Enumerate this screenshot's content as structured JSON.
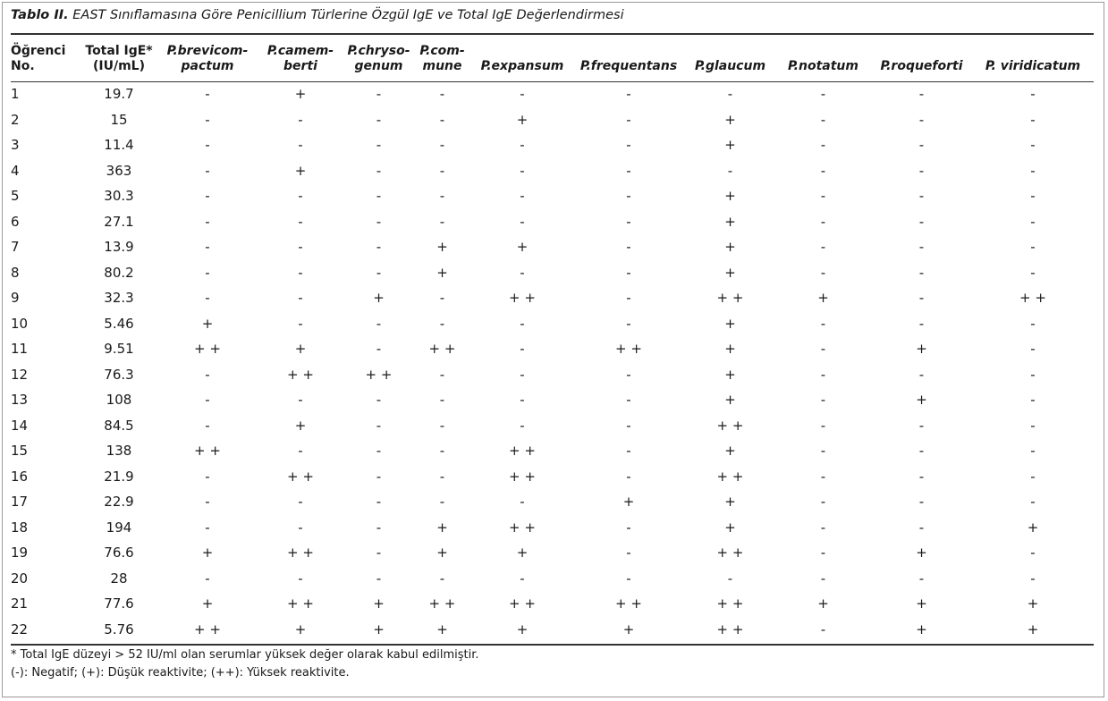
{
  "caption": {
    "label": "Tablo II.",
    "text": "EAST Sınıflamasına Göre Penicillium Türlerine Özgül IgE ve Total IgE Değerlendirmesi"
  },
  "headers": [
    {
      "l1": "Öğrenci",
      "l2": "No."
    },
    {
      "l1": "Total IgE*",
      "l2": "(IU/mL)"
    },
    {
      "l1": "P.brevicom-",
      "l2": "pactum"
    },
    {
      "l1": "P.camem-",
      "l2": "berti"
    },
    {
      "l1": "P.chryso-",
      "l2": "genum"
    },
    {
      "l1": "P.com-",
      "l2": "mune"
    },
    {
      "l1": "",
      "l2": "P.expansum"
    },
    {
      "l1": "",
      "l2": "P.frequentans"
    },
    {
      "l1": "",
      "l2": "P.glaucum"
    },
    {
      "l1": "",
      "l2": "P.notatum"
    },
    {
      "l1": "",
      "l2": "P.roqueforti"
    },
    {
      "l1": "",
      "l2": "P. viridicatum"
    }
  ],
  "rows": [
    [
      "1",
      "19.7",
      "-",
      "+",
      "-",
      "-",
      "-",
      "-",
      "-",
      "-",
      "-",
      "-"
    ],
    [
      "2",
      "15",
      "-",
      "-",
      "-",
      "-",
      "+",
      "-",
      "+",
      "-",
      "-",
      "-"
    ],
    [
      "3",
      "11.4",
      "-",
      "-",
      "-",
      "-",
      "-",
      "-",
      "+",
      "-",
      "-",
      "-"
    ],
    [
      "4",
      "363",
      "-",
      "+",
      "-",
      "-",
      "-",
      "-",
      "-",
      "-",
      "-",
      "-"
    ],
    [
      "5",
      "30.3",
      "-",
      "-",
      "-",
      "-",
      "-",
      "-",
      "+",
      "-",
      "-",
      "-"
    ],
    [
      "6",
      "27.1",
      "-",
      "-",
      "-",
      "-",
      "-",
      "-",
      "+",
      "-",
      "-",
      "-"
    ],
    [
      "7",
      "13.9",
      "-",
      "-",
      "-",
      "+",
      "+",
      "-",
      "+",
      "-",
      "-",
      "-"
    ],
    [
      "8",
      "80.2",
      "-",
      "-",
      "-",
      "+",
      "-",
      "-",
      "+",
      "-",
      "-",
      "-"
    ],
    [
      "9",
      "32.3",
      "-",
      "-",
      "+",
      "-",
      "+ +",
      "-",
      "+ +",
      "+",
      "-",
      "+ +"
    ],
    [
      "10",
      "5.46",
      "+",
      "-",
      "-",
      "-",
      "-",
      "-",
      "+",
      "-",
      "-",
      "-"
    ],
    [
      "11",
      "9.51",
      "+ +",
      "+",
      "-",
      "+ +",
      "-",
      "+ +",
      "+",
      "-",
      "+",
      "-"
    ],
    [
      "12",
      "76.3",
      "-",
      "+ +",
      "+ +",
      "-",
      "-",
      "-",
      "+",
      "-",
      "-",
      "-"
    ],
    [
      "13",
      "108",
      "-",
      "-",
      "-",
      "-",
      "-",
      "-",
      "+",
      "-",
      "+",
      "-"
    ],
    [
      "14",
      "84.5",
      "-",
      "+",
      "-",
      "-",
      "-",
      "-",
      "+ +",
      "-",
      "-",
      "-"
    ],
    [
      "15",
      "138",
      "+ +",
      "-",
      "-",
      "-",
      "+ +",
      "-",
      "+",
      "-",
      "-",
      "-"
    ],
    [
      "16",
      "21.9",
      "-",
      "+ +",
      "-",
      "-",
      "+ +",
      "-",
      "+ +",
      "-",
      "-",
      "-"
    ],
    [
      "17",
      "22.9",
      "-",
      "-",
      "-",
      "-",
      "-",
      "+",
      "+",
      "-",
      "-",
      "-"
    ],
    [
      "18",
      "194",
      "-",
      "-",
      "-",
      "+",
      "+ +",
      "-",
      "+",
      "-",
      "-",
      "+"
    ],
    [
      "19",
      "76.6",
      "+",
      "+ +",
      "-",
      "+",
      "+",
      "-",
      "+ +",
      "-",
      "+",
      "-"
    ],
    [
      "20",
      "28",
      "-",
      "-",
      "-",
      "-",
      "-",
      "-",
      "-",
      "-",
      "-",
      "-"
    ],
    [
      "21",
      "77.6",
      "+",
      "+ +",
      "+",
      "+ +",
      "+ +",
      "+ +",
      "+ +",
      "+",
      "+",
      "+"
    ],
    [
      "22",
      "5.76",
      "+ +",
      "+",
      "+",
      "+",
      "+",
      "+",
      "+ +",
      "-",
      "+",
      "+"
    ]
  ],
  "footnotes": [
    "* Total IgE düzeyi > 52 IU/ml olan serumlar yüksek değer olarak kabul edilmiştir.",
    "(-): Negatif; (+): Düşük reaktivite; (++): Yüksek reaktivite."
  ]
}
